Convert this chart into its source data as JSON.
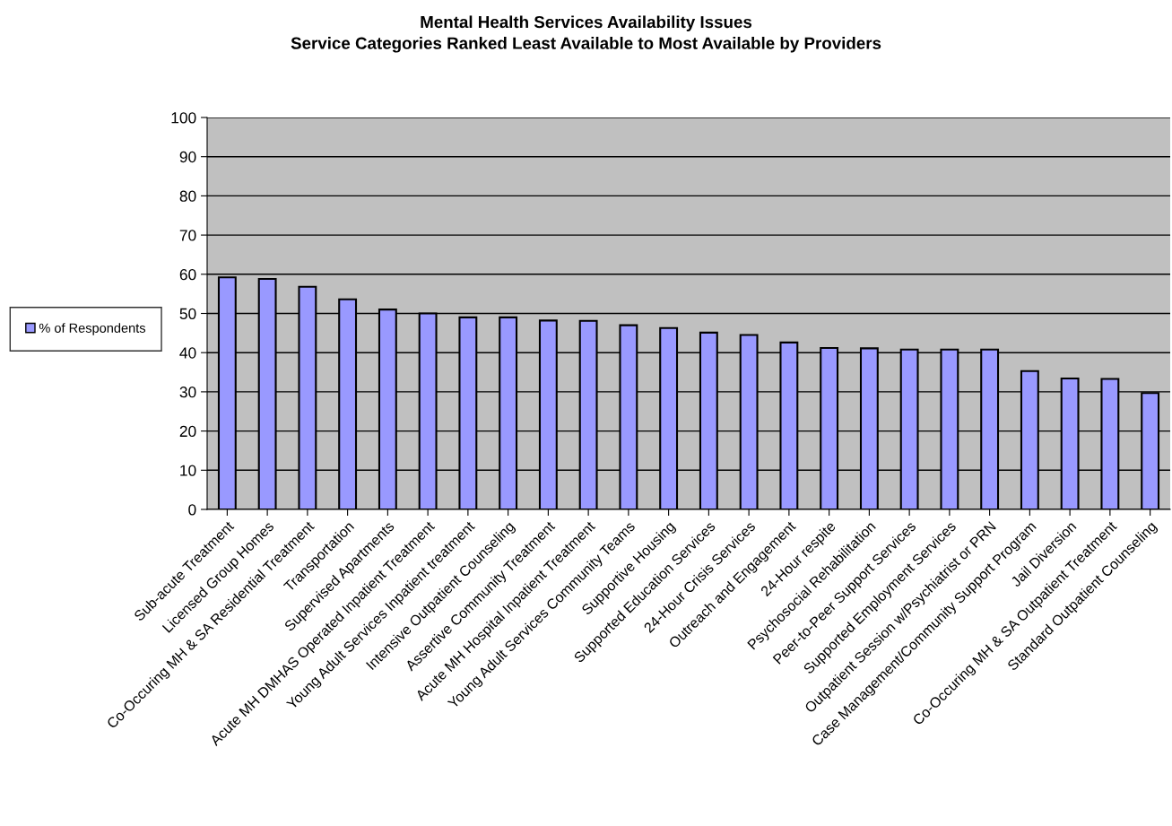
{
  "chart_data": {
    "type": "bar",
    "title": "Mental Health Services Availability Issues\nService Categories Ranked Least Available to Most Available by Providers",
    "categories": [
      "Sub-acute Treatment",
      "Licensed Group Homes",
      "Co-Occuring MH & SA Residential Treatment",
      "Transportation",
      "Supervised Apartments",
      "Acute MH DMHAS Operated Inpatient Treatment",
      "Young Adult Services Inpatient treatment",
      "Intensive Outpatient Counseling",
      "Assertive Community Treatment",
      "Acute MH Hospital Inpatient Treatment",
      "Young Adult Services Community Teams",
      "Supportive Housing",
      "Supported Education Services",
      "24-Hour Crisis Services",
      "Outreach and Engagement",
      "24-Hour respite",
      "Psychosocial Rehabilitation",
      "Peer-to-Peer Support Services",
      "Supported Employment Services",
      "Outpatient Session w/Psychiatrist or PRN",
      "Case Management/Community Support Program",
      "Jail Diversion",
      "Co-Occuring MH & SA Outpatient Treatment",
      "Standard Outpatient Counseling"
    ],
    "series": [
      {
        "name": "% of Respondents",
        "color": "#9999ff",
        "values": [
          59.2,
          58.8,
          56.8,
          53.6,
          51.0,
          50.0,
          49.0,
          49.0,
          48.2,
          48.1,
          47.0,
          46.3,
          45.1,
          44.5,
          42.6,
          41.2,
          41.1,
          40.8,
          40.8,
          40.8,
          35.3,
          33.4,
          33.3,
          29.7
        ]
      }
    ],
    "ylim": [
      0,
      100
    ],
    "yticks": [
      0,
      10,
      20,
      30,
      40,
      50,
      60,
      70,
      80,
      90,
      100
    ],
    "grid": "y",
    "legend": "left"
  }
}
